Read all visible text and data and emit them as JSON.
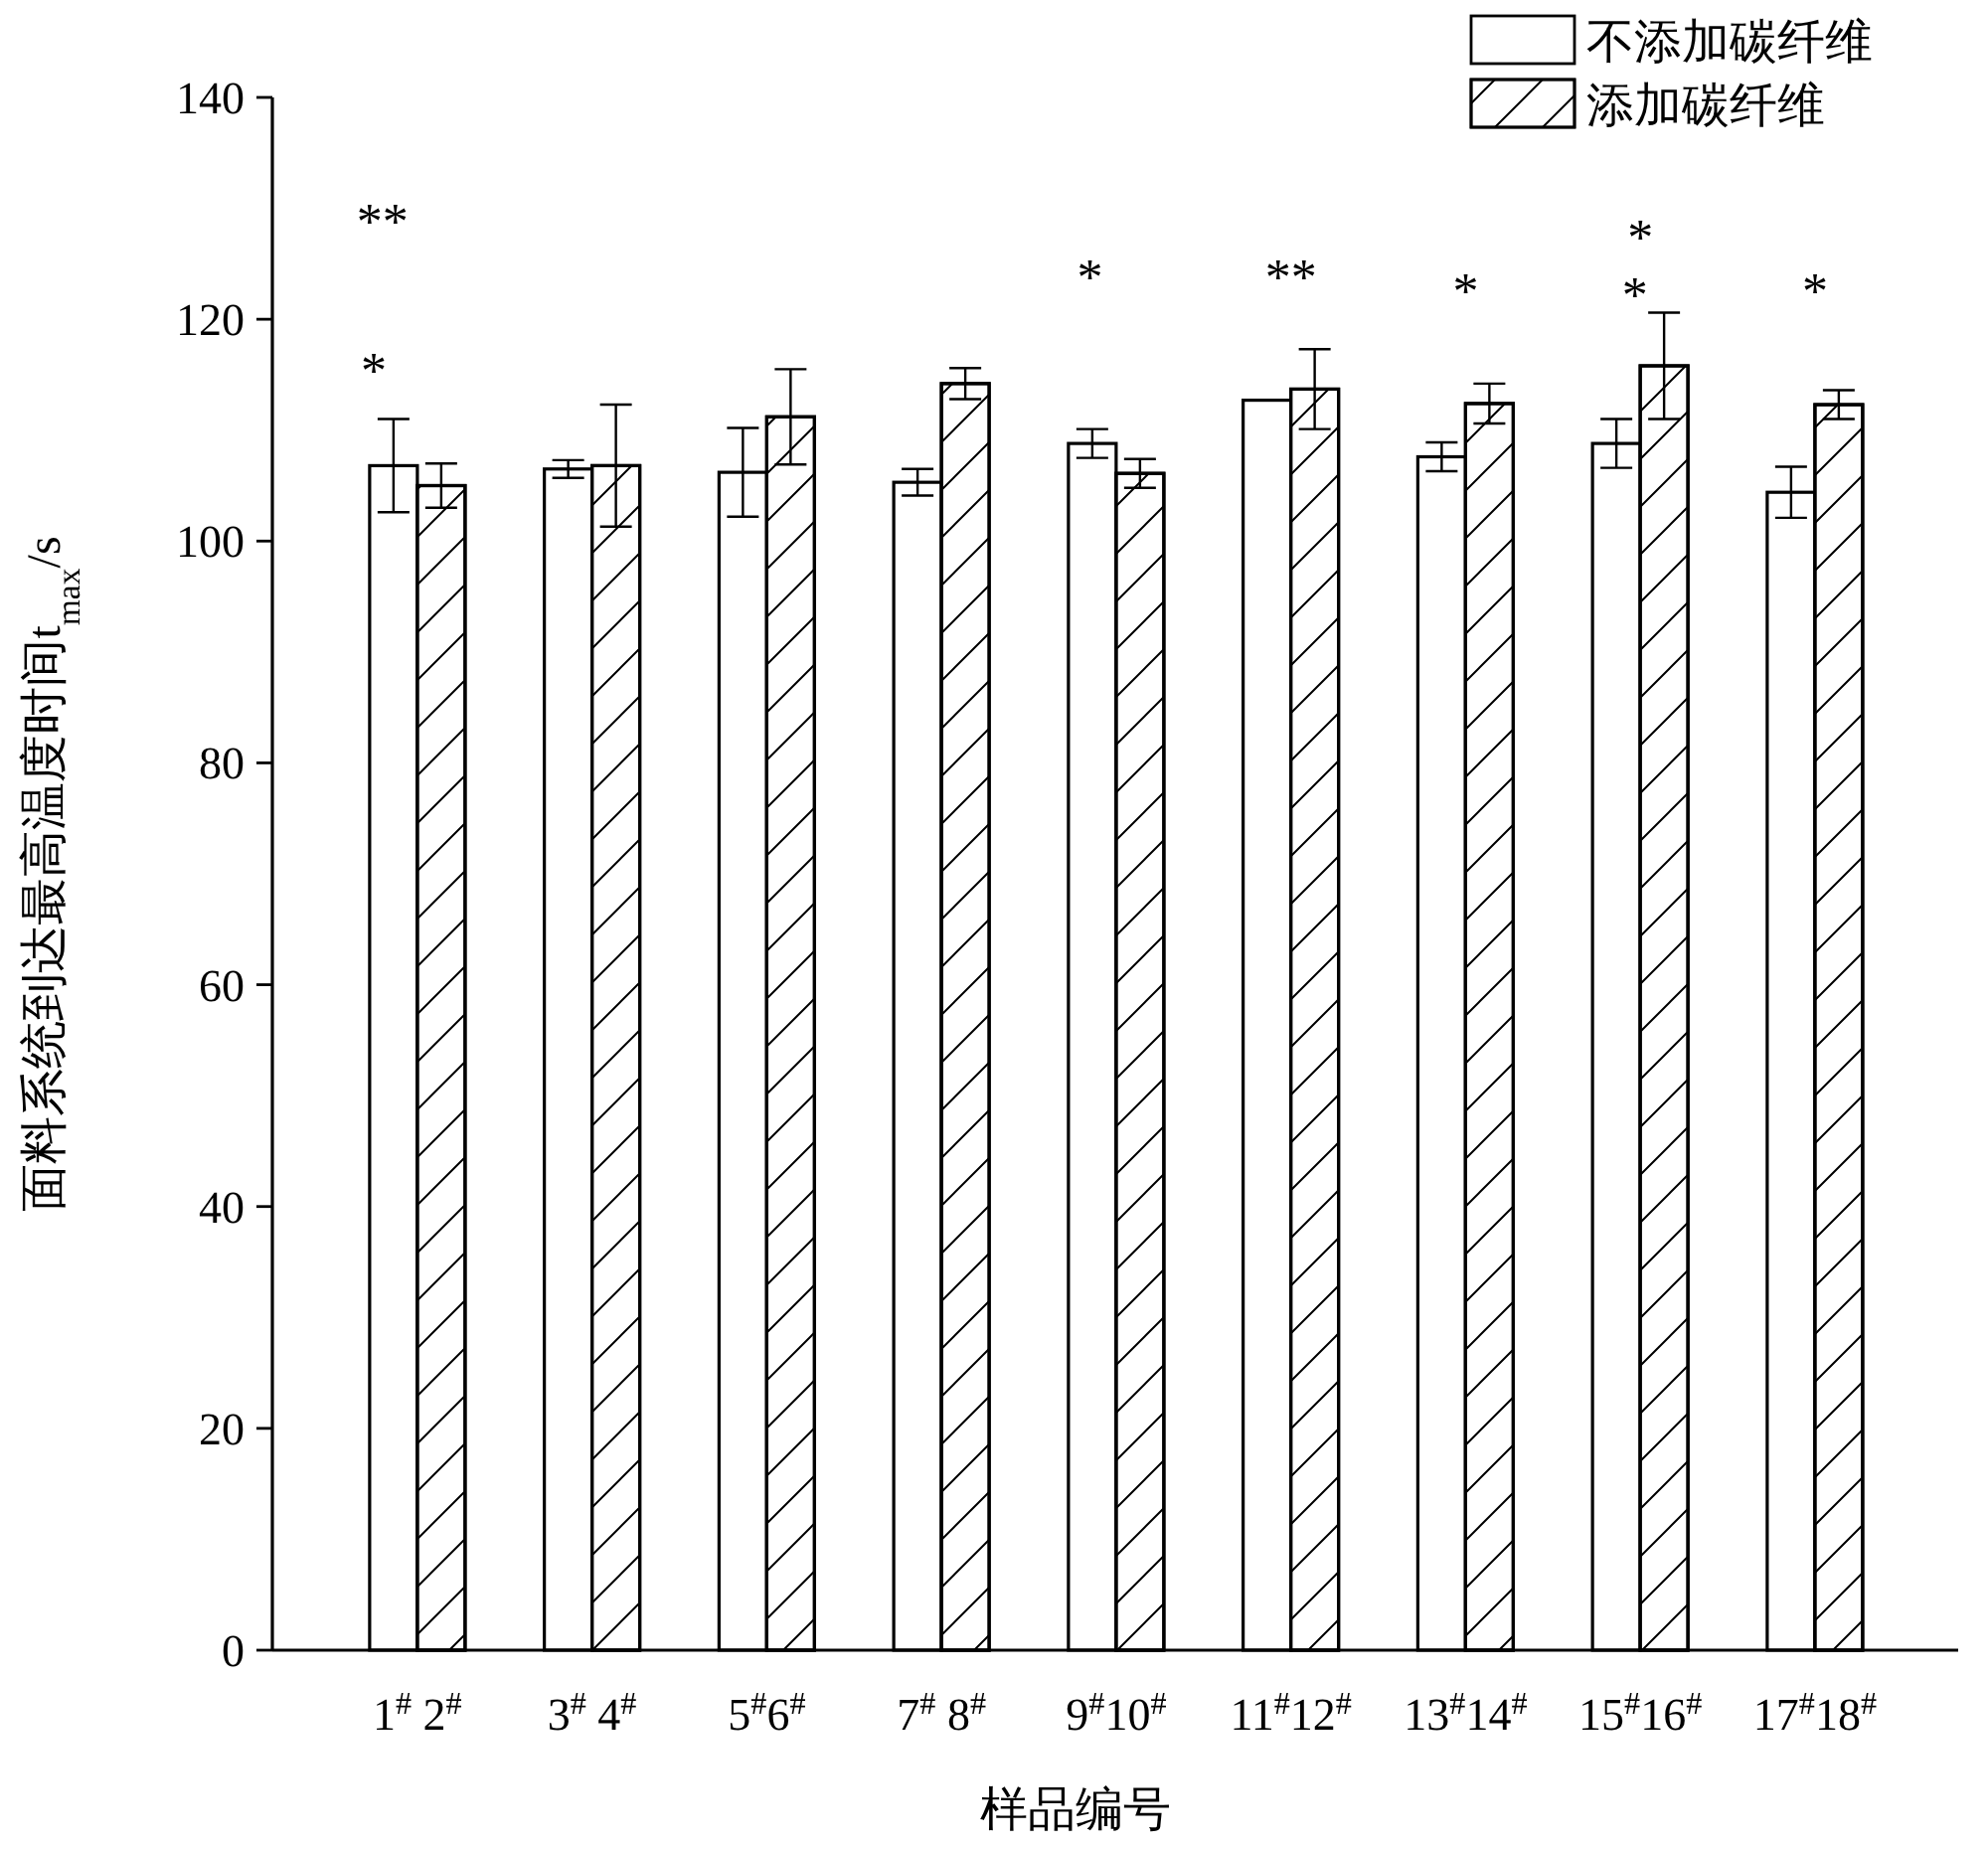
{
  "chart_data": {
    "type": "bar",
    "xlabel": "样品编号",
    "ylabel": "面料系统到达最高温度时间t$_{max}$/s",
    "categories": [
      "1$^{#}$ 2$^{#}$",
      "3$^{#}$ 4$^{#}$",
      "5$^{#}$6$^{#}$",
      "7$^{#}$ 8$^{#}$",
      "9$^{#}$10$^{#}$",
      "11$^{#}$12$^{#}$",
      "13$^{#}$14$^{#}$",
      "15$^{#}$16$^{#}$",
      "17$^{#}$18$^{#}$"
    ],
    "series": [
      {
        "name": "不添加碳纤维",
        "color": "#ffffff",
        "values": [
          106.8,
          106.5,
          106.2,
          105.3,
          108.8,
          112.7,
          107.6,
          108.8,
          104.4
        ],
        "errors": [
          4.2,
          0.8,
          4.0,
          1.2,
          1.3,
          null,
          1.3,
          2.2,
          2.3
        ]
      },
      {
        "name": "添加碳纤维",
        "color": "#ffffff",
        "values": [
          105.0,
          106.8,
          111.2,
          114.2,
          106.1,
          113.7,
          112.4,
          115.8,
          112.3
        ],
        "errors": [
          2.0,
          5.5,
          4.3,
          1.4,
          1.3,
          3.6,
          1.8,
          4.8,
          1.3
        ]
      }
    ],
    "ylim": [
      0,
      140
    ],
    "yticks": [
      0,
      20,
      40,
      60,
      80,
      100,
      120,
      140
    ],
    "grid": false,
    "legend": "top right",
    "annotations": [
      "**",
      "*",
      "*",
      "**",
      "*",
      "*",
      "*",
      "*"
    ]
  }
}
